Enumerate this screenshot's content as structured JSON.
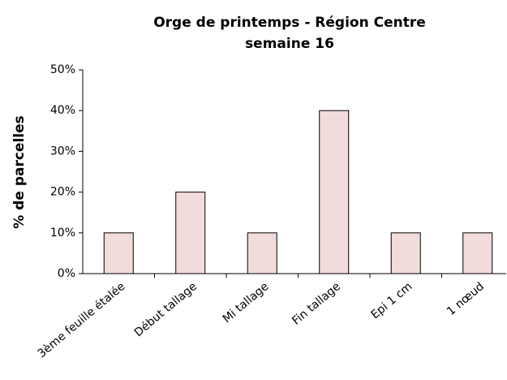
{
  "chart_data": {
    "type": "bar",
    "title": "Orge de printemps - Région Centre",
    "subtitle": "semaine 16",
    "y_label": "% de parcelles",
    "categories": [
      "3ème feuille étalée",
      "Début tallage",
      "Mi tallage",
      "Fin tallage",
      "Epi 1 cm",
      "1 nœud"
    ],
    "values": [
      10,
      20,
      10,
      40,
      10,
      10
    ],
    "color": "#f2dcdb",
    "ylim": [
      0,
      50
    ],
    "yticks": [
      {
        "value": 0,
        "label": "0%"
      },
      {
        "value": 10,
        "label": "10%"
      },
      {
        "value": 20,
        "label": "20%"
      },
      {
        "value": 30,
        "label": "30%"
      },
      {
        "value": 40,
        "label": "40%"
      },
      {
        "value": 50,
        "label": "50%"
      }
    ],
    "grid": false
  }
}
